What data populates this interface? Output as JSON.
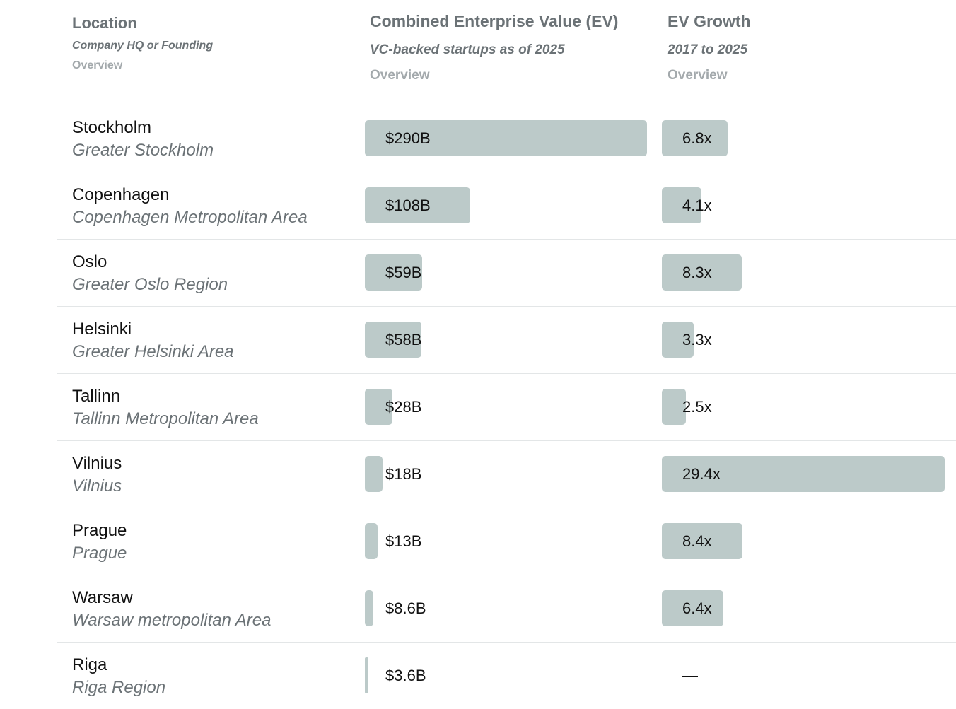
{
  "header": {
    "location": {
      "title": "Location",
      "subtitle": "Company HQ or Founding",
      "link": "Overview"
    },
    "ev": {
      "title": "Combined Enterprise Value (EV)",
      "subtitle": "VC-backed startups as of 2025",
      "link": "Overview"
    },
    "growth": {
      "title": "EV Growth",
      "subtitle": "2017 to 2025",
      "link": "Overview"
    }
  },
  "colors": {
    "bar": "#bccac9",
    "header_text": "#6b7276",
    "link_text": "#a3a9ac",
    "divider": "#e3e6e7"
  },
  "chart_data": {
    "type": "table",
    "columns": [
      "Location",
      "Combined Enterprise Value (EV)",
      "EV Growth"
    ],
    "rows": [
      {
        "name": "Stockholm",
        "area": "Greater Stockholm",
        "ev": 290,
        "ev_label": "$290B",
        "growth": 6.8,
        "growth_label": "6.8x"
      },
      {
        "name": "Copenhagen",
        "area": "Copenhagen Metropolitan Area",
        "ev": 108,
        "ev_label": "$108B",
        "growth": 4.1,
        "growth_label": "4.1x"
      },
      {
        "name": "Oslo",
        "area": "Greater Oslo Region",
        "ev": 59,
        "ev_label": "$59B",
        "growth": 8.3,
        "growth_label": "8.3x"
      },
      {
        "name": "Helsinki",
        "area": "Greater Helsinki Area",
        "ev": 58,
        "ev_label": "$58B",
        "growth": 3.3,
        "growth_label": "3.3x"
      },
      {
        "name": "Tallinn",
        "area": "Tallinn Metropolitan Area",
        "ev": 28,
        "ev_label": "$28B",
        "growth": 2.5,
        "growth_label": "2.5x"
      },
      {
        "name": "Vilnius",
        "area": "Vilnius",
        "ev": 18,
        "ev_label": "$18B",
        "growth": 29.4,
        "growth_label": "29.4x"
      },
      {
        "name": "Prague",
        "area": "Prague",
        "ev": 13,
        "ev_label": "$13B",
        "growth": 8.4,
        "growth_label": "8.4x"
      },
      {
        "name": "Warsaw",
        "area": "Warsaw metropolitan Area",
        "ev": 8.6,
        "ev_label": "$8.6B",
        "growth": 6.4,
        "growth_label": "6.4x"
      },
      {
        "name": "Riga",
        "area": "Riga Region",
        "ev": 3.6,
        "ev_label": "$3.6B",
        "growth": null,
        "growth_label": "—"
      }
    ],
    "ev_max": 290,
    "growth_max": 29.4
  }
}
